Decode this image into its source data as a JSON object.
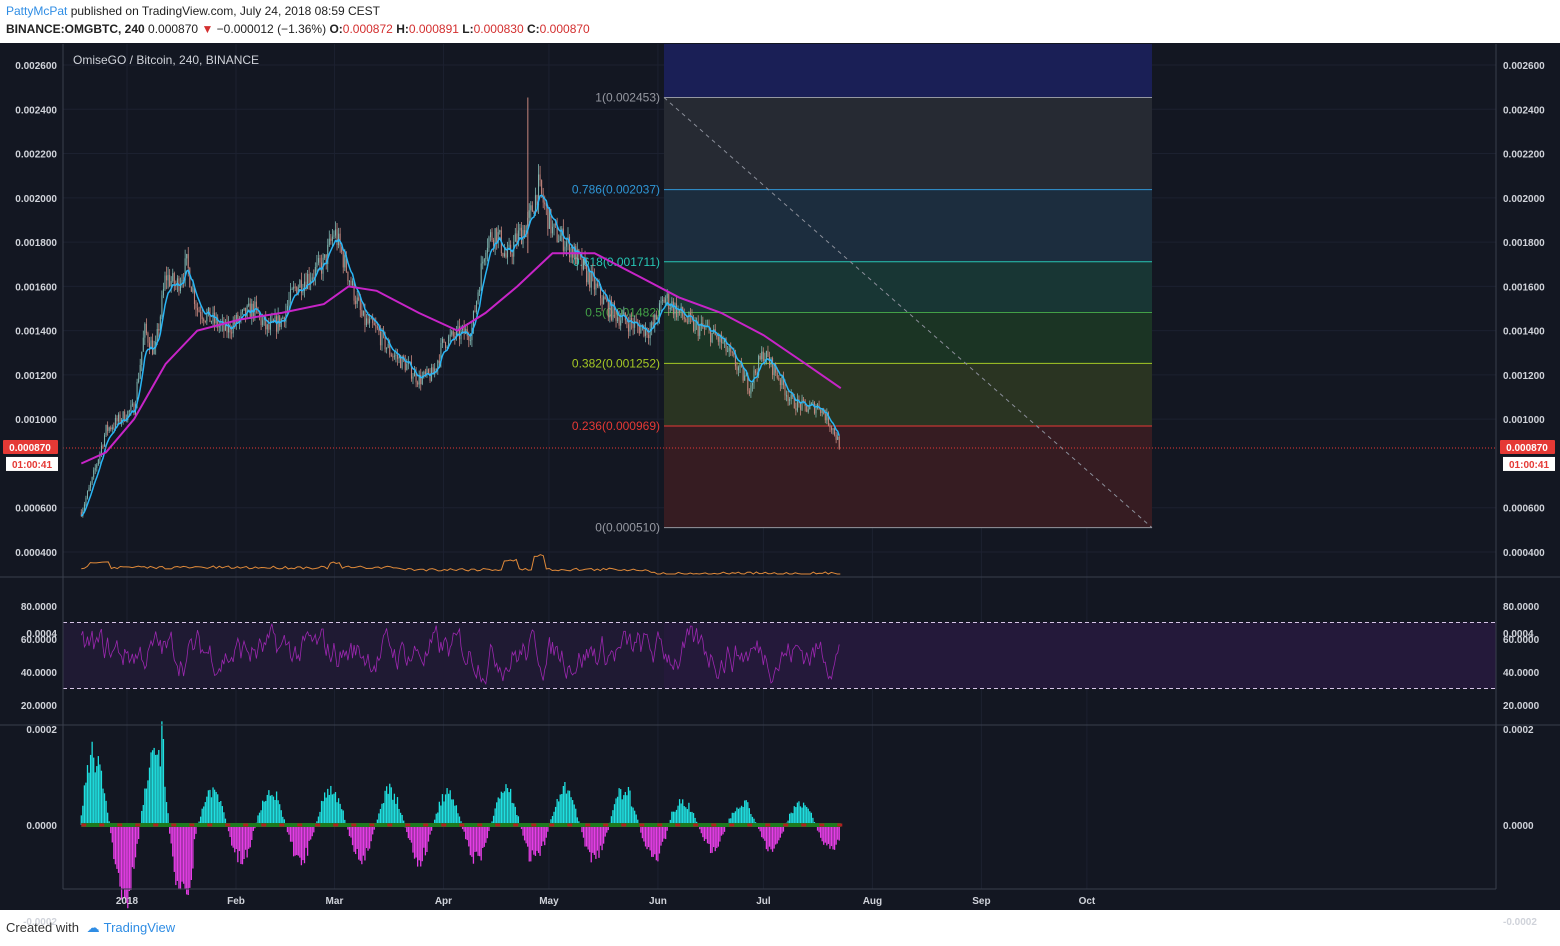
{
  "header": {
    "author": "PattyMcPat",
    "published_text": "published on TradingView.com, July 24, 2018 08:59 CEST",
    "symbol": "BINANCE:OMGBTC, 240",
    "last": "0.000870",
    "change": "−0.000012 (−1.36%)",
    "o_label": "O:",
    "o_value": "0.000872",
    "h_label": "H:",
    "h_value": "0.000891",
    "l_label": "L:",
    "l_value": "0.000830",
    "c_label": "C:",
    "c_value": "0.000870"
  },
  "footer": {
    "created_with": "Created with",
    "brand": "TradingView"
  },
  "colors": {
    "background": "#131722",
    "candle_up": "#7fb6b0",
    "candle_down": "#c7877e",
    "ema_fast": "#29b6f6",
    "ema_slow": "#c724c7",
    "volume": "#e08a3a",
    "rsi": "#9c27b0",
    "osc_up": "#1fe0e0",
    "osc_down": "#e63ee6",
    "price_line": "#e53935"
  },
  "chart_data": [
    {
      "type": "line",
      "title": "OmiseGO / Bitcoin, 240, BINANCE",
      "x_ticks": [
        "2018",
        "Feb",
        "Mar",
        "Apr",
        "May",
        "Jun",
        "Jul",
        "Aug",
        "Sep",
        "Oct"
      ],
      "y_ticks": [
        "0.002600",
        "0.002400",
        "0.002200",
        "0.002000",
        "0.001800",
        "0.001600",
        "0.001400",
        "0.001200",
        "0.001000",
        "0.000600",
        "0.000400"
      ],
      "ylim": [
        0.00034,
        0.00272
      ],
      "current_price": "0.000870",
      "countdown": "01:00:41",
      "price_path": {
        "x": [
          "2017-12-19",
          "2017-12-22",
          "2017-12-26",
          "2017-12-30",
          "2018-01-03",
          "2018-01-06",
          "2018-01-09",
          "2018-01-12",
          "2018-01-15",
          "2018-01-18",
          "2018-01-21",
          "2018-01-25",
          "2018-01-29",
          "2018-02-02",
          "2018-02-06",
          "2018-02-10",
          "2018-02-14",
          "2018-02-18",
          "2018-02-22",
          "2018-02-26",
          "2018-03-01",
          "2018-03-05",
          "2018-03-09",
          "2018-03-13",
          "2018-03-17",
          "2018-03-21",
          "2018-03-25",
          "2018-03-29",
          "2018-04-01",
          "2018-04-05",
          "2018-04-09",
          "2018-04-13",
          "2018-04-16",
          "2018-04-19",
          "2018-04-22",
          "2018-04-25",
          "2018-04-28",
          "2018-05-02",
          "2018-05-06",
          "2018-05-10",
          "2018-05-14",
          "2018-05-18",
          "2018-05-22",
          "2018-05-26",
          "2018-05-30",
          "2018-06-03",
          "2018-06-07",
          "2018-06-11",
          "2018-06-15",
          "2018-06-19",
          "2018-06-23",
          "2018-06-27",
          "2018-07-01",
          "2018-07-05",
          "2018-07-09",
          "2018-07-13",
          "2018-07-17",
          "2018-07-21",
          "2018-07-23"
        ],
        "y": [
          0.00058,
          0.00072,
          0.00095,
          0.001,
          0.00105,
          0.0014,
          0.0013,
          0.00165,
          0.0016,
          0.0017,
          0.0015,
          0.00145,
          0.0014,
          0.00145,
          0.0015,
          0.0014,
          0.00145,
          0.0016,
          0.00165,
          0.0017,
          0.00185,
          0.00165,
          0.00145,
          0.0014,
          0.0013,
          0.00125,
          0.00118,
          0.0012,
          0.00135,
          0.00138,
          0.0014,
          0.0018,
          0.00185,
          0.00172,
          0.00182,
          0.00188,
          0.00205,
          0.00185,
          0.0018,
          0.0017,
          0.0016,
          0.0015,
          0.00145,
          0.00142,
          0.0014,
          0.00155,
          0.00148,
          0.00142,
          0.0014,
          0.00135,
          0.00125,
          0.00115,
          0.0013,
          0.0012,
          0.00108,
          0.00105,
          0.00106,
          0.00095,
          0.00087
        ]
      },
      "ema_slow_path": {
        "x": [
          "2017-12-19",
          "2017-12-26",
          "2018-01-03",
          "2018-01-12",
          "2018-01-21",
          "2018-02-02",
          "2018-02-14",
          "2018-02-26",
          "2018-03-05",
          "2018-03-13",
          "2018-03-25",
          "2018-04-05",
          "2018-04-13",
          "2018-04-22",
          "2018-05-02",
          "2018-05-14",
          "2018-05-26",
          "2018-06-07",
          "2018-06-19",
          "2018-07-01",
          "2018-07-13",
          "2018-07-23"
        ],
        "y": [
          0.0008,
          0.00085,
          0.001,
          0.00125,
          0.0014,
          0.00145,
          0.00148,
          0.00152,
          0.0016,
          0.00158,
          0.00148,
          0.0014,
          0.00148,
          0.0016,
          0.00175,
          0.00175,
          0.00165,
          0.00155,
          0.00148,
          0.00138,
          0.00125,
          0.00114
        ]
      },
      "fibonacci": {
        "levels": [
          {
            "label": "1(0.002453)",
            "ratio": 1,
            "price": 0.002453,
            "color": "#9598a1",
            "zone": "#262a33"
          },
          {
            "label": "0.786(0.002037)",
            "ratio": 0.786,
            "price": 0.002037,
            "color": "#2f96d6",
            "zone": "#1c2d3e"
          },
          {
            "label": "0.618(0.001711)",
            "ratio": 0.618,
            "price": 0.001711,
            "color": "#26c6b4",
            "zone": "#183634"
          },
          {
            "label": "0.5(0.001482)",
            "ratio": 0.5,
            "price": 0.001482,
            "color": "#43a047",
            "zone": "#1b3424"
          },
          {
            "label": "0.382(0.001252)",
            "ratio": 0.382,
            "price": 0.001252,
            "color": "#a5c825",
            "zone": "#2a3422"
          },
          {
            "label": "0.236(0.000969)",
            "ratio": 0.236,
            "price": 0.000969,
            "color": "#e53935",
            "zone": "#361c22"
          },
          {
            "label": "0(0.000510)",
            "ratio": 0,
            "price": 0.00051,
            "color": "#9598a1",
            "zone": null
          }
        ],
        "upper_zone_color": "#1a1f56"
      }
    },
    {
      "type": "line",
      "title": "",
      "y_ticks": [
        "80.0000",
        "60.0000",
        "40.0000",
        "20.0000"
      ],
      "ylim": [
        15,
        90
      ],
      "bands": [
        70,
        30
      ]
    },
    {
      "type": "area",
      "title": "",
      "y_ticks": [
        "0.0004",
        "0.0002",
        "0.0000",
        "-0.0002"
      ],
      "ylim": [
        -0.00025,
        0.00041
      ]
    }
  ]
}
